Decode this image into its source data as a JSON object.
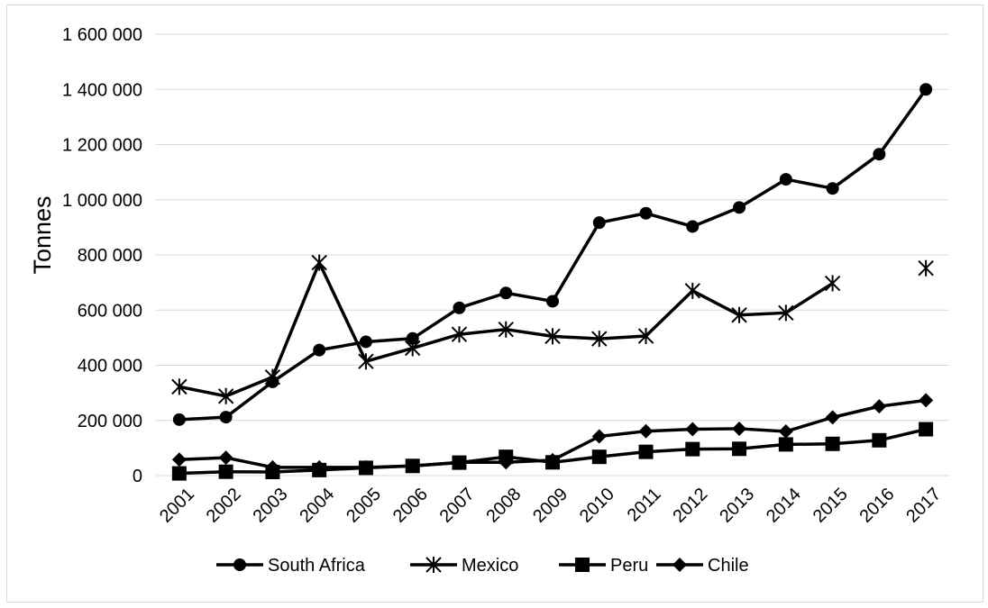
{
  "chart_data": {
    "type": "line",
    "title": "",
    "xlabel": "",
    "ylabel": "Tonnes",
    "categories": [
      "2001",
      "2002",
      "2003",
      "2004",
      "2005",
      "2006",
      "2007",
      "2008",
      "2009",
      "2010",
      "2011",
      "2012",
      "2013",
      "2014",
      "2015",
      "2016",
      "2017"
    ],
    "ylim": [
      0,
      1600000
    ],
    "yticks": [
      0,
      200000,
      400000,
      600000,
      800000,
      1000000,
      1200000,
      1400000,
      1600000
    ],
    "ytick_labels": [
      "0",
      "200 000",
      "400 000",
      "600 000",
      "800 000",
      "1 000 000",
      "1 200 000",
      "1 400 000",
      "1 600 000"
    ],
    "grid": true,
    "legend_position": "bottom",
    "series": [
      {
        "name": "South Africa",
        "marker": "circle",
        "color": "#000000",
        "values": [
          203000,
          212000,
          340000,
          455000,
          485000,
          497000,
          608000,
          662000,
          632000,
          917000,
          951000,
          903000,
          972000,
          1074000,
          1041000,
          1165000,
          1400000
        ]
      },
      {
        "name": "Mexico",
        "marker": "star",
        "color": "#000000",
        "values": [
          322000,
          288000,
          357000,
          772000,
          414000,
          462000,
          512000,
          530000,
          505000,
          496000,
          506000,
          670000,
          582000,
          590000,
          697000,
          null,
          752000
        ]
      },
      {
        "name": "Peru",
        "marker": "square",
        "color": "#000000",
        "values": [
          8000,
          14000,
          13000,
          20000,
          28000,
          35000,
          47000,
          68000,
          48000,
          68000,
          86000,
          96000,
          97000,
          113000,
          115000,
          128000,
          168000
        ]
      },
      {
        "name": "Chile",
        "marker": "diamond",
        "color": "#000000",
        "values": [
          58000,
          65000,
          30000,
          30000,
          30000,
          35000,
          48000,
          48000,
          56000,
          142000,
          161000,
          168000,
          170000,
          160000,
          211000,
          251000,
          273000
        ]
      }
    ]
  }
}
